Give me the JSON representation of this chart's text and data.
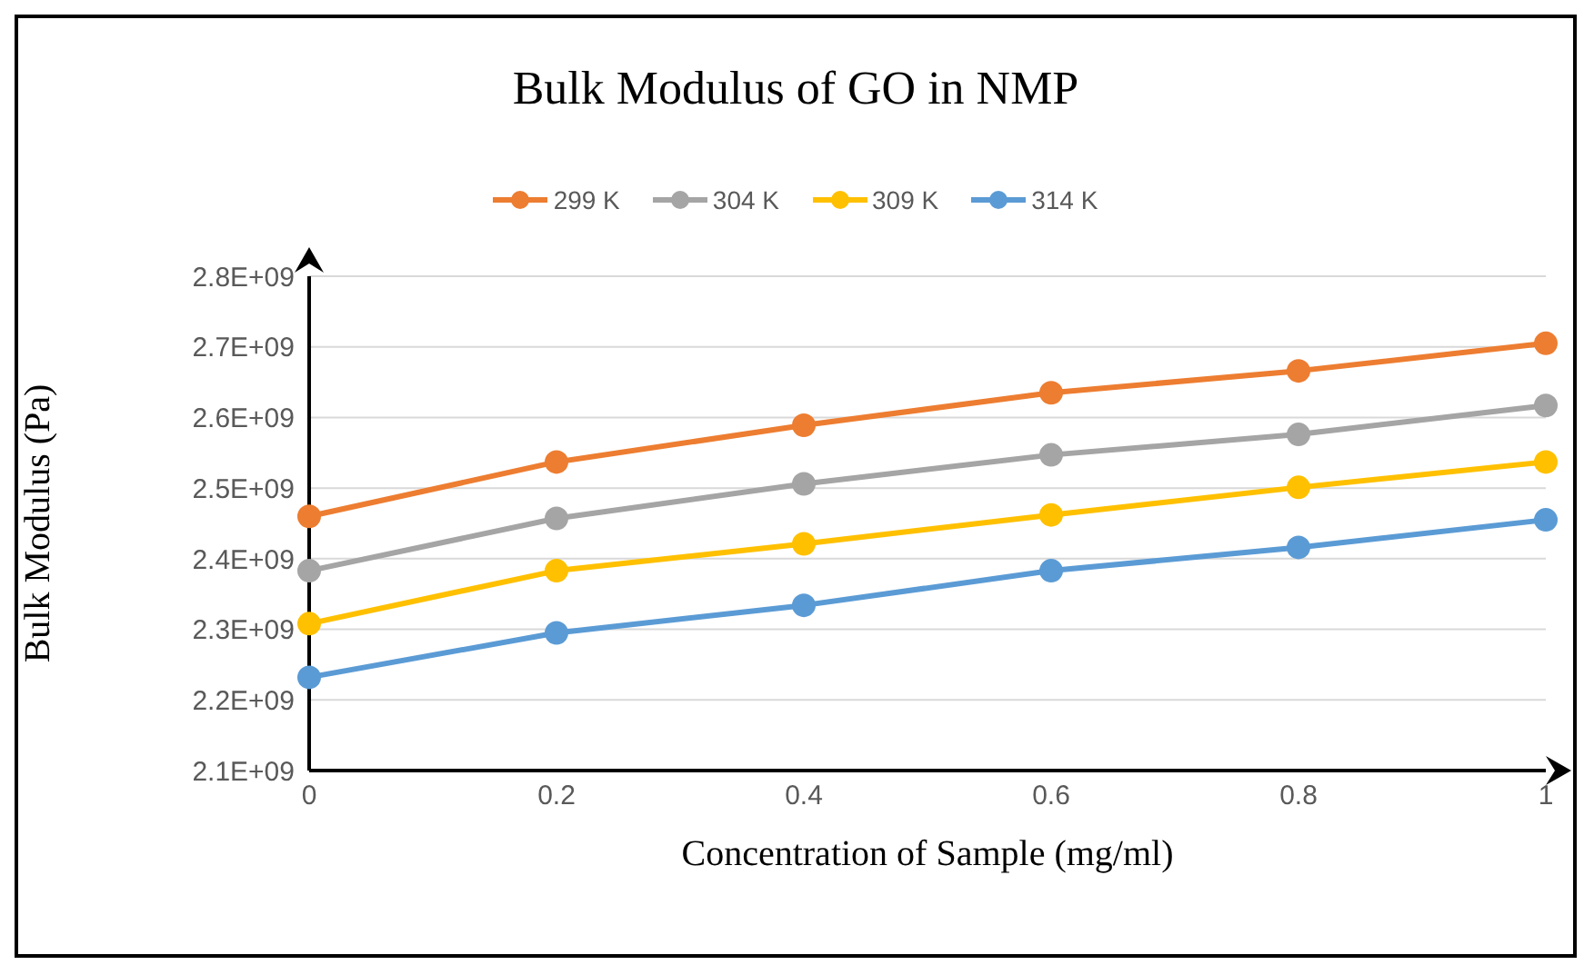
{
  "chart_data": {
    "type": "line",
    "title": "Bulk Modulus of GO in NMP",
    "xlabel": "Concentration of Sample (mg/ml)",
    "ylabel": "Bulk Modulus (Pa)",
    "categories": [
      "0",
      "0.2",
      "0.4",
      "0.6",
      "0.8",
      "1"
    ],
    "series": [
      {
        "name": "299 K",
        "color": "#ed7d31",
        "values": [
          2460000000,
          2537000000,
          2589000000,
          2635000000,
          2666000000,
          2705000000
        ]
      },
      {
        "name": "304 K",
        "color": "#a5a5a5",
        "values": [
          2383000000,
          2457000000,
          2506000000,
          2547000000,
          2576000000,
          2617000000
        ]
      },
      {
        "name": "309 K",
        "color": "#ffc000",
        "values": [
          2308000000,
          2383000000,
          2421000000,
          2462000000,
          2501000000,
          2537000000
        ]
      },
      {
        "name": "314 K",
        "color": "#5b9bd5",
        "values": [
          2232000000,
          2295000000,
          2334000000,
          2383000000,
          2416000000,
          2455000000
        ]
      }
    ],
    "ylim": [
      2100000000,
      2800000000
    ],
    "yticks": [
      {
        "value": 2100000000,
        "label": "2.1E+09"
      },
      {
        "value": 2200000000,
        "label": "2.2E+09"
      },
      {
        "value": 2300000000,
        "label": "2.3E+09"
      },
      {
        "value": 2400000000,
        "label": "2.4E+09"
      },
      {
        "value": 2500000000,
        "label": "2.5E+09"
      },
      {
        "value": 2600000000,
        "label": "2.6E+09"
      },
      {
        "value": 2700000000,
        "label": "2.7E+09"
      },
      {
        "value": 2800000000,
        "label": "2.8E+09"
      }
    ],
    "grid": "y",
    "legend": "top",
    "marker": "circle",
    "line_style": "solid"
  }
}
